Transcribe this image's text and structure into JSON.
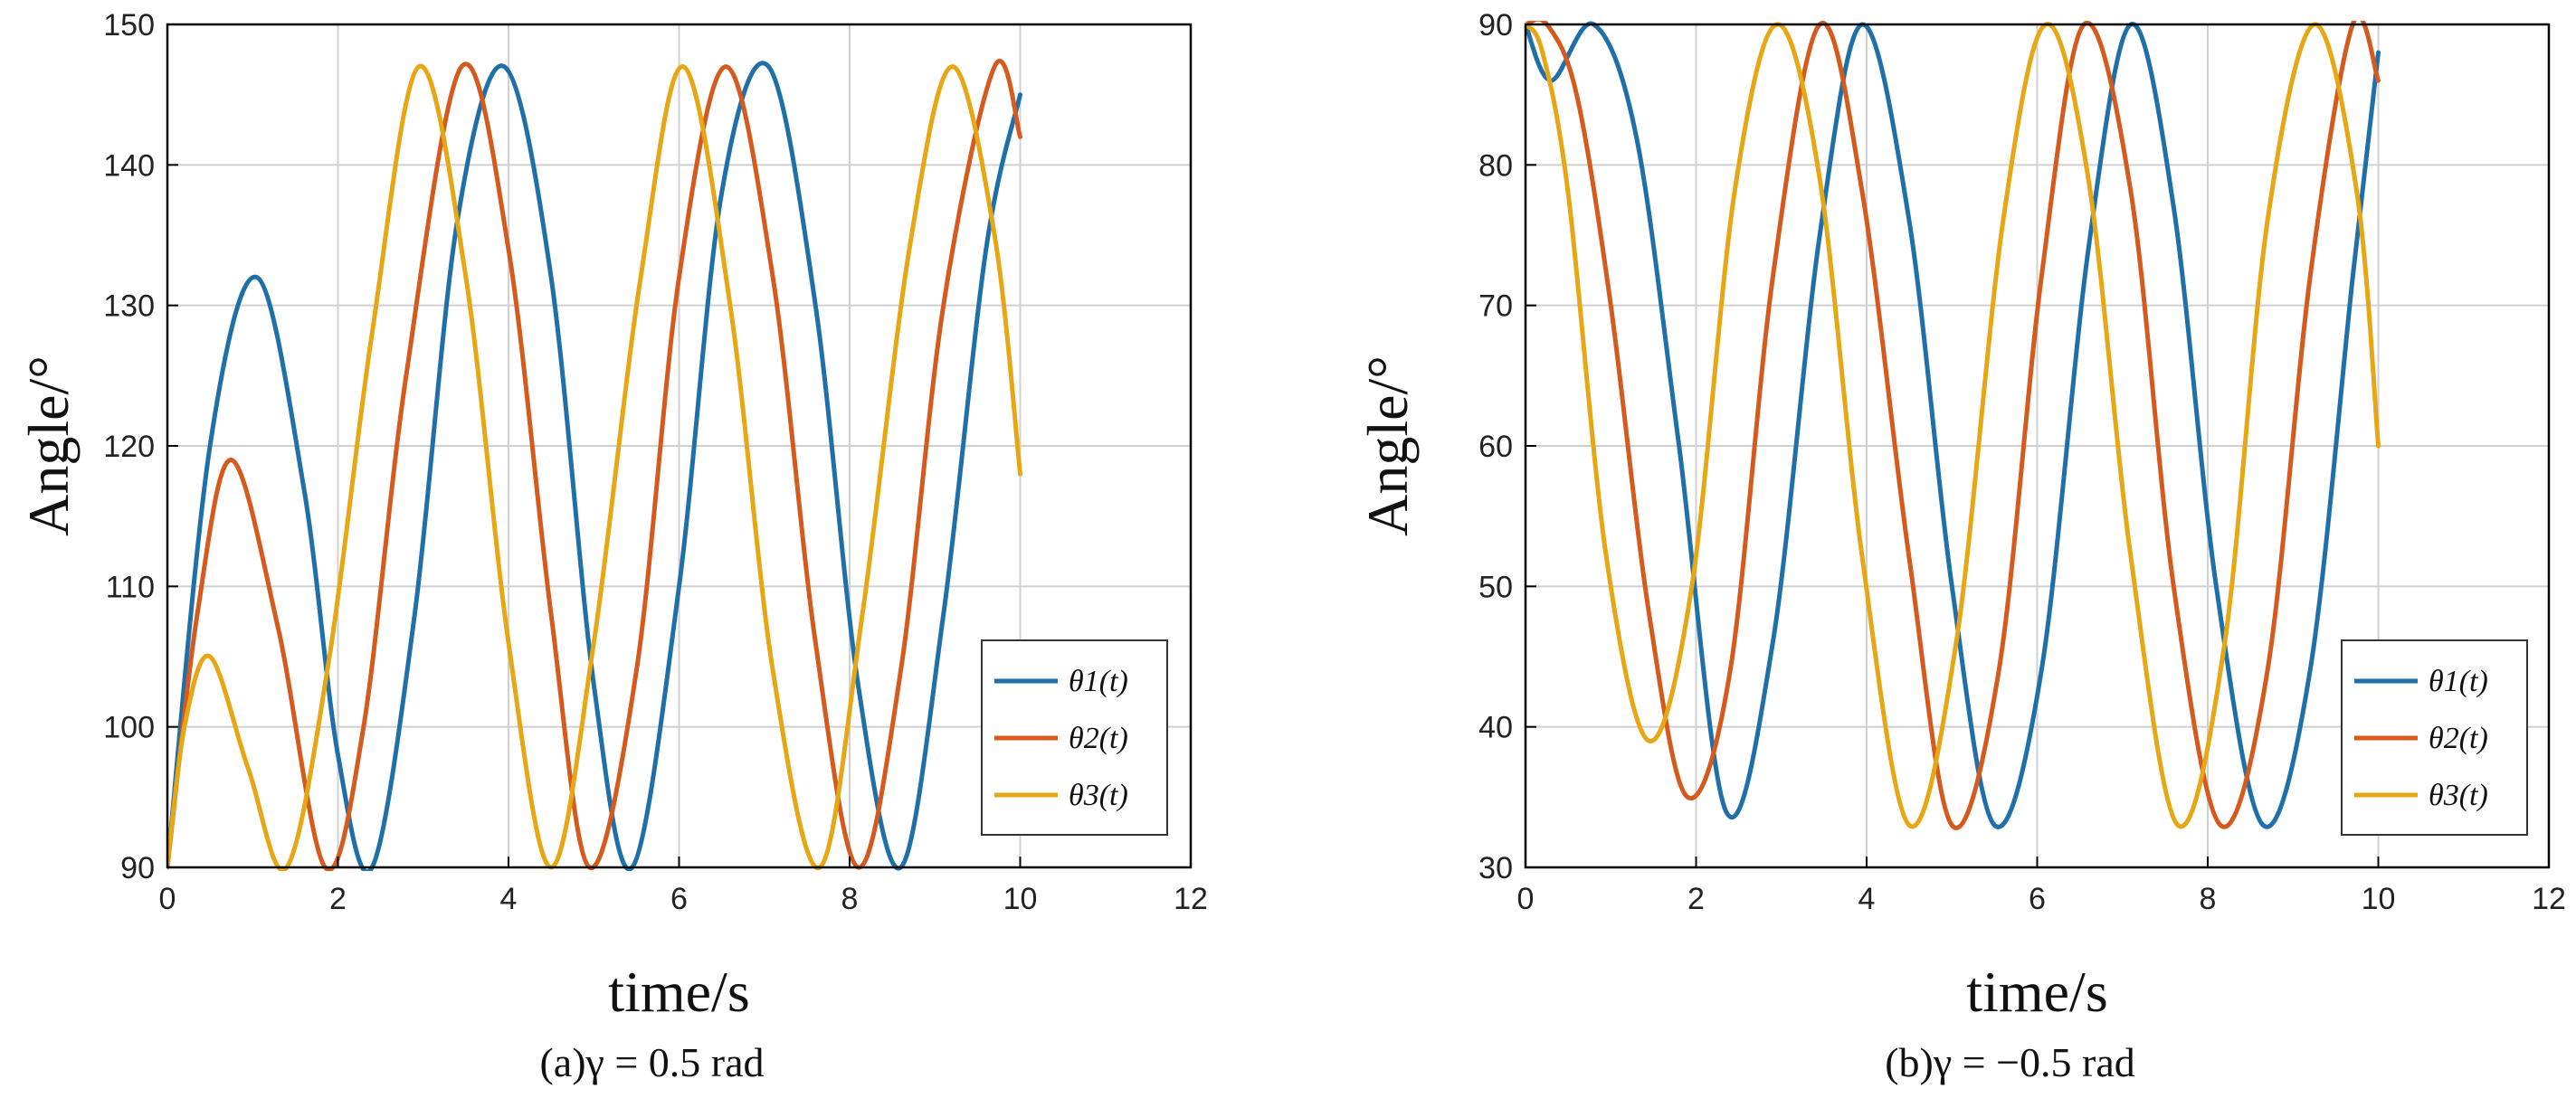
{
  "chart_data": [
    {
      "type": "line",
      "xlabel": "time/s",
      "ylabel": "Angle/°",
      "xlim": [
        0,
        12
      ],
      "ylim": [
        90,
        150
      ],
      "xticks": [
        "0",
        "2",
        "4",
        "6",
        "8",
        "10",
        "12"
      ],
      "yticks": [
        "90",
        "100",
        "110",
        "120",
        "130",
        "140",
        "150"
      ],
      "grid": true,
      "legend_position": "bottom-right",
      "caption": "(a)γ = 0.5 rad",
      "series": [
        {
          "name": "θ1(t)",
          "color": "#1f6fa8",
          "x": [
            0,
            0.5,
            1.05,
            1.6,
            2.0,
            2.4,
            2.9,
            3.4,
            3.95,
            4.5,
            5.0,
            5.45,
            6.0,
            6.5,
            7.05,
            7.6,
            8.1,
            8.6,
            9.1,
            9.6,
            10.0
          ],
          "y": [
            90,
            120,
            132,
            117,
            98,
            90,
            108,
            136,
            147,
            132,
            103,
            90,
            110,
            138,
            147,
            130,
            103,
            90,
            108,
            134,
            145
          ]
        },
        {
          "name": "θ2(t)",
          "color": "#d45a1e",
          "x": [
            0,
            0.35,
            0.75,
            1.3,
            1.85,
            2.3,
            2.8,
            3.45,
            4.0,
            4.5,
            4.95,
            5.5,
            6.0,
            6.55,
            7.1,
            7.6,
            8.1,
            8.6,
            9.1,
            9.7,
            10.0
          ],
          "y": [
            90,
            108,
            119,
            107,
            90,
            100,
            125,
            147,
            134,
            108,
            90,
            104,
            132,
            147,
            132,
            106,
            90,
            104,
            130,
            147,
            142
          ]
        },
        {
          "name": "θ3(t)",
          "color": "#e7a614",
          "x": [
            0,
            0.2,
            0.5,
            0.95,
            1.4,
            1.9,
            2.4,
            2.95,
            3.5,
            4.0,
            4.5,
            5.0,
            5.55,
            6.05,
            6.6,
            7.1,
            7.65,
            8.15,
            8.7,
            9.2,
            9.7,
            10.0
          ],
          "y": [
            90,
            100,
            105,
            97,
            90,
            105,
            128,
            147,
            132,
            106,
            90,
            106,
            132,
            147,
            130,
            104,
            90,
            108,
            134,
            147,
            135,
            118
          ]
        }
      ]
    },
    {
      "type": "line",
      "xlabel": "time/s",
      "ylabel": "Angle/°",
      "xlim": [
        0,
        12
      ],
      "ylim": [
        30,
        90
      ],
      "xticks": [
        "0",
        "2",
        "4",
        "6",
        "8",
        "10",
        "12"
      ],
      "yticks": [
        "30",
        "40",
        "50",
        "60",
        "70",
        "80",
        "90"
      ],
      "grid": true,
      "legend_position": "bottom-right",
      "caption": "(b)γ = −0.5 rad",
      "series": [
        {
          "name": "θ1(t)",
          "color": "#1f6fa8",
          "x": [
            0,
            0.3,
            0.8,
            1.3,
            1.8,
            2.35,
            2.9,
            3.45,
            3.95,
            4.5,
            5.0,
            5.5,
            6.05,
            6.6,
            7.1,
            7.6,
            8.1,
            8.65,
            9.2,
            9.7,
            10.0
          ],
          "y": [
            90,
            86,
            90,
            82,
            60,
            34,
            46,
            75,
            90,
            76,
            50,
            33,
            44,
            74,
            90,
            77,
            50,
            33,
            44,
            72,
            88
          ]
        },
        {
          "name": "θ2(t)",
          "color": "#d45a1e",
          "x": [
            0,
            0.25,
            0.6,
            1.0,
            1.45,
            1.9,
            2.4,
            2.9,
            3.45,
            3.95,
            4.5,
            5.0,
            5.55,
            6.05,
            6.55,
            7.1,
            7.6,
            8.15,
            8.7,
            9.2,
            9.7,
            10.0
          ],
          "y": [
            90,
            90,
            85,
            70,
            48,
            35,
            44,
            72,
            90,
            78,
            52,
            33,
            44,
            72,
            90,
            78,
            50,
            33,
            44,
            72,
            90,
            86
          ]
        },
        {
          "name": "θ3(t)",
          "color": "#e7a614",
          "x": [
            0,
            0.2,
            0.5,
            0.95,
            1.45,
            1.95,
            2.45,
            2.95,
            3.45,
            3.95,
            4.5,
            5.05,
            5.6,
            6.1,
            6.6,
            7.1,
            7.65,
            8.2,
            8.7,
            9.25,
            9.75,
            10.0
          ],
          "y": [
            90,
            88,
            78,
            52,
            39,
            50,
            78,
            90,
            79,
            52,
            33,
            46,
            76,
            90,
            79,
            52,
            33,
            46,
            76,
            90,
            78,
            60
          ]
        }
      ]
    }
  ]
}
